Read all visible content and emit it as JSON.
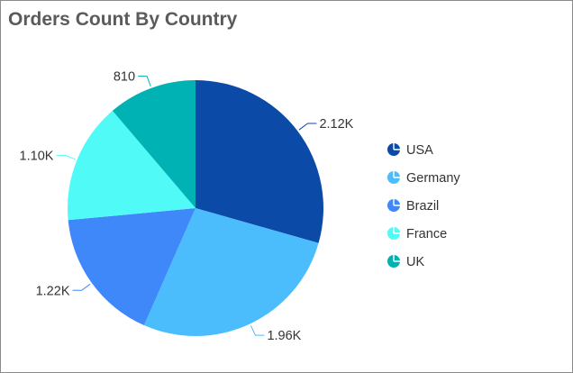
{
  "chart_data": {
    "type": "pie",
    "title": "Orders Count By Country",
    "categories": [
      "USA",
      "Germany",
      "Brazil",
      "France",
      "UK"
    ],
    "values": [
      2120,
      1960,
      1220,
      1100,
      810
    ],
    "data_labels": [
      "2.12K",
      "1.96K",
      "1.22K",
      "1.10K",
      "810"
    ],
    "colors": [
      "#0b4aa6",
      "#4cbdfc",
      "#3f88fa",
      "#50fbf7",
      "#00b2b4"
    ],
    "legend_position": "right",
    "legend_icon": "pie-icon"
  }
}
